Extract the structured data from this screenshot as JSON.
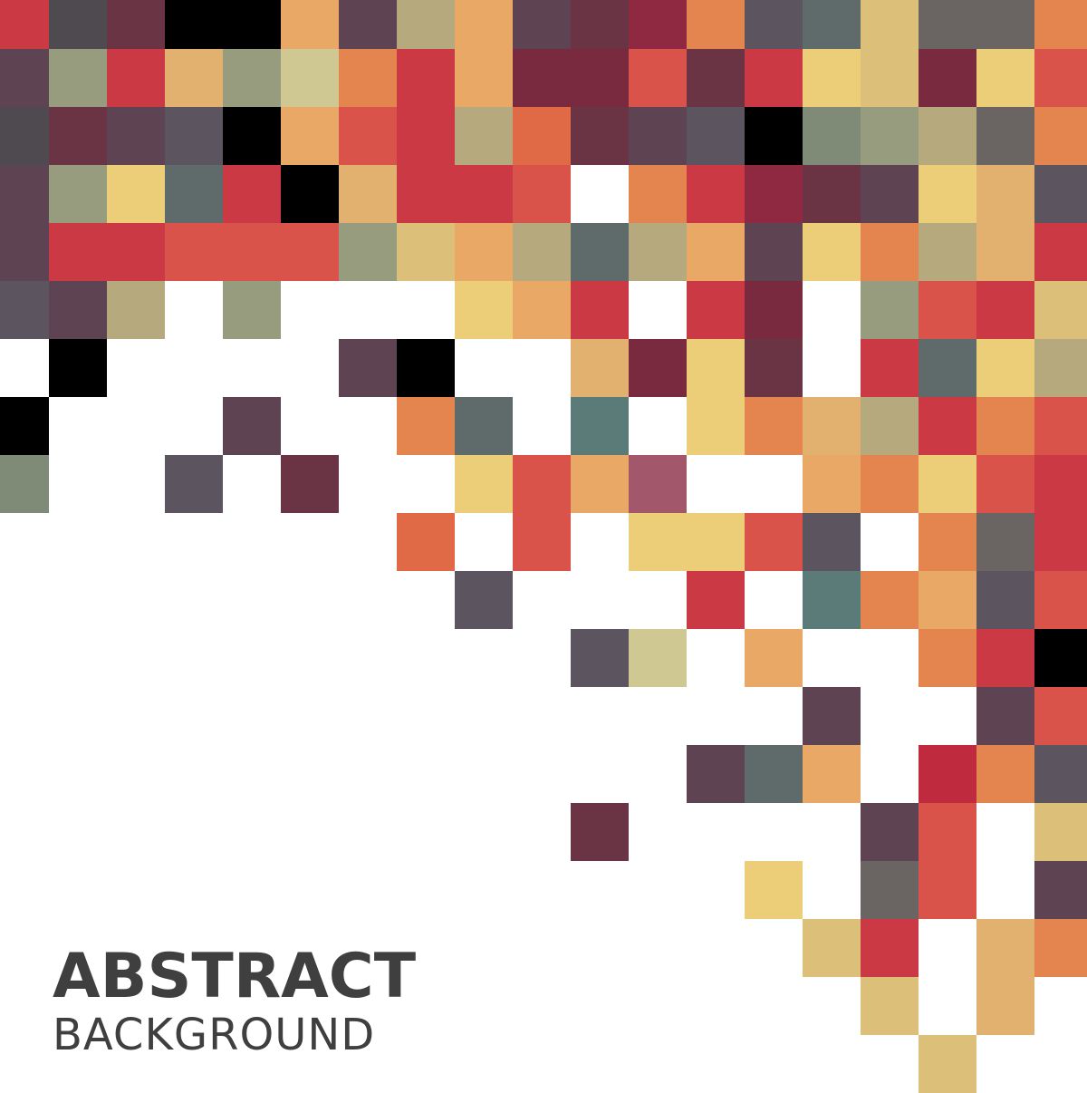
{
  "title": {
    "main": "ABSTRACT",
    "sub": "BACKGROUND"
  },
  "colors": {
    "background": "#ffffff",
    "text": "#3f3f3f"
  },
  "palette": {
    "R": "#cb3a44",
    "r": "#d9534a",
    "O": "#e06a45",
    "o": "#e4854f",
    "A": "#e9a866",
    "a": "#e2b170",
    "Y": "#edce78",
    "y": "#dcc07a",
    "S": "#b6a97e",
    "G": "#969c7d",
    "g": "#7f8b77",
    "T": "#5f6a6b",
    "t": "#5b7b79",
    "P": "#5e4452",
    "p": "#6b3444",
    "M": "#7a2a3f",
    "m": "#8e2941",
    "V": "#5c5560",
    "D": "#4f4a4f",
    "K": "#000000",
    "L": "#a3576a",
    "C": "#cfc892",
    "N": "#6a6563",
    "B": "#c02a3f"
  },
  "grid_rows": [
    "RDpKKAPSAPpmoVTyNNo",
    "PGRaGCoRAMMrpRYyMYr",
    "DpPVKArRSOpPVKgGSNo",
    "PGYTRKaRRr.oRmpPYaV",
    "PRRrrrGyASTSAPYoSaR",
    "VPS.G...YAR.RM.GrRy",
    ".K....PK..aMYp.RTYS",
    "K...P..oT.t.YoaSRor",
    "g..V.p..YrAL..AoYrR",
    ".......O.r.YYrV.oNR",
    "........V...R.toAVr",
    "..........VC.A..oRK",
    "..............P..Pr",
    "............PTA.BoV",
    "..........p....Pr.y",
    ".............Y.Nr.P",
    "..............yR.ao",
    "...............y.a.",
    "................y.."
  ]
}
